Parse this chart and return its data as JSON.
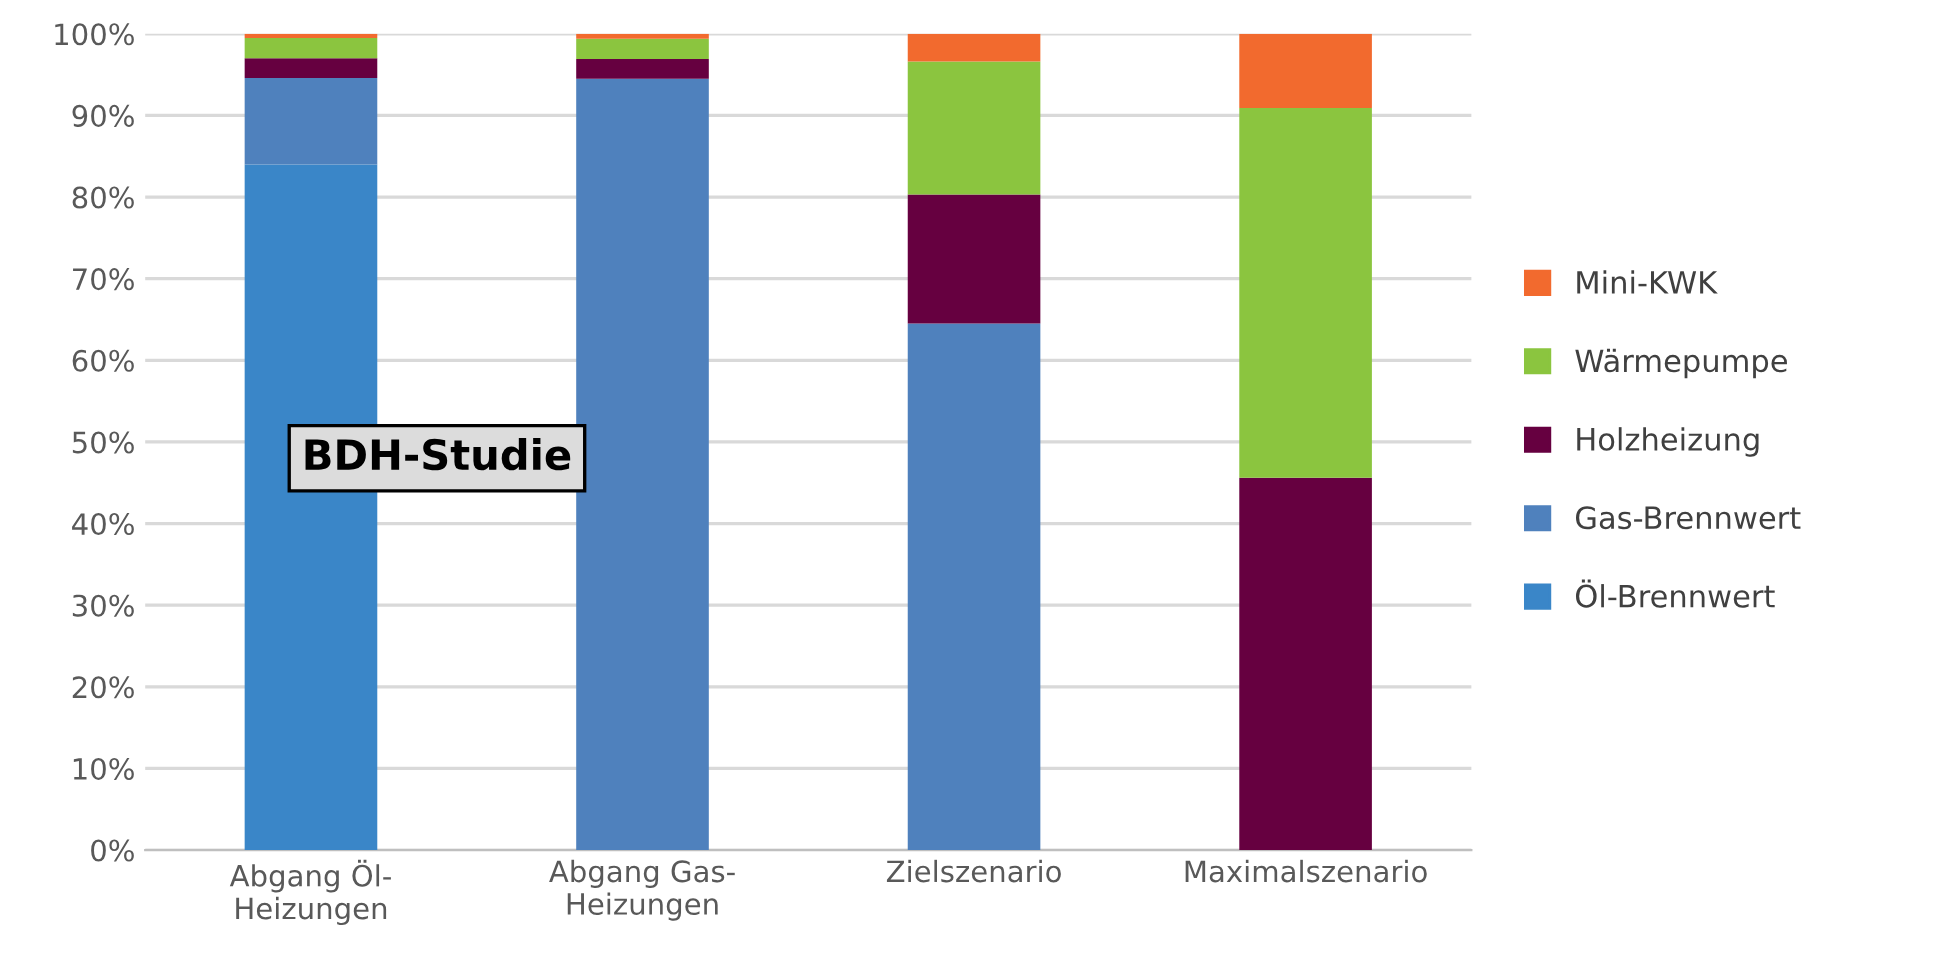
{
  "chart_data": {
    "type": "bar",
    "stacked": true,
    "categories": [
      "Abgang Öl-\nHeizungen",
      "Abgang Gas-\nHeizungen",
      "Zielszenario",
      "Maximalszenario"
    ],
    "series": [
      {
        "name": "Öl-Brennwert",
        "color": "#3a86c8",
        "values": [
          84,
          0,
          0,
          0
        ]
      },
      {
        "name": "Gas-Brennwert",
        "color": "#4f81bd",
        "values": [
          10.6,
          94.5,
          64.5,
          0
        ]
      },
      {
        "name": "Holzheizung",
        "color": "#660040",
        "values": [
          2.4,
          2.4,
          15.8,
          45.6
        ]
      },
      {
        "name": "Wärmepumpe",
        "color": "#8bc53f",
        "values": [
          2.5,
          2.5,
          16.3,
          45.3
        ]
      },
      {
        "name": "Mini-KWK",
        "color": "#f26a2e",
        "values": [
          0.5,
          0.6,
          3.4,
          9.1
        ]
      }
    ],
    "ylim": [
      0,
      100
    ],
    "yticks": [
      {
        "value": 0,
        "label": "0%"
      },
      {
        "value": 10,
        "label": "10%"
      },
      {
        "value": 20,
        "label": "20%"
      },
      {
        "value": 30,
        "label": "30%"
      },
      {
        "value": 40,
        "label": "40%"
      },
      {
        "value": 50,
        "label": "50%"
      },
      {
        "value": 60,
        "label": "60%"
      },
      {
        "value": 70,
        "label": "70%"
      },
      {
        "value": 80,
        "label": "80%"
      },
      {
        "value": 90,
        "label": "90%"
      },
      {
        "value": 100,
        "label": "100%"
      }
    ],
    "grid": "y",
    "legend": "right",
    "annotations": [
      "BDH-Studie"
    ]
  }
}
